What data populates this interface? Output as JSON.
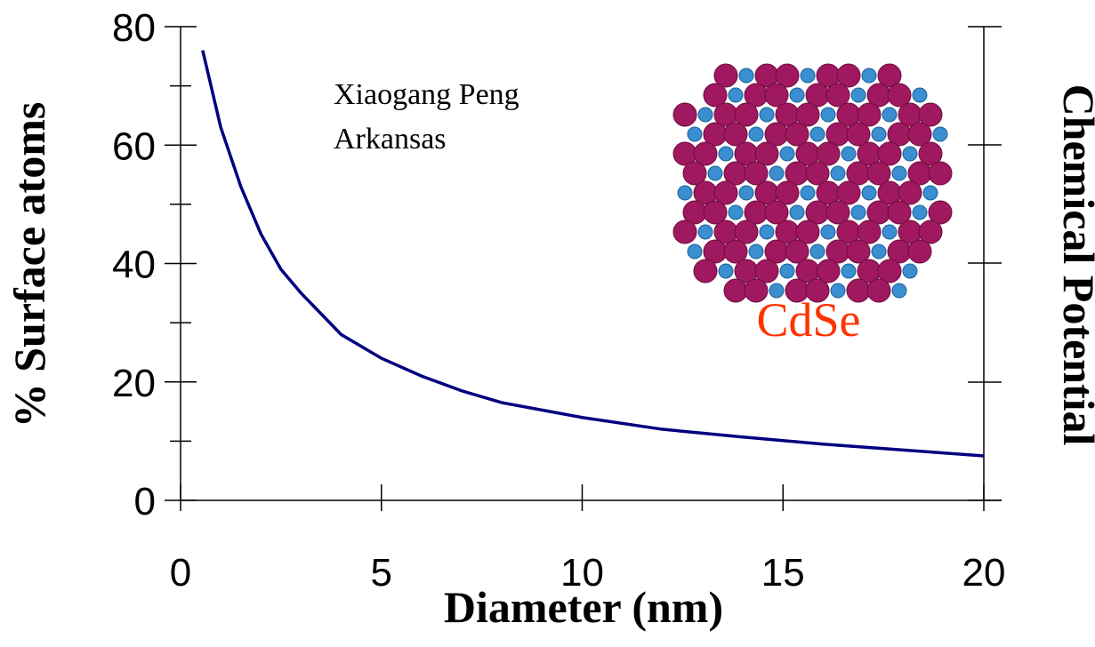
{
  "chart_data": {
    "type": "line",
    "x_label": "Diameter (nm)",
    "y_label": "% Surface atoms",
    "y2_label": "Chemical Potential",
    "annotations": [
      "Xiaogang Peng",
      "Arkansas",
      "CdSe"
    ],
    "xlim": [
      0,
      20
    ],
    "xticks": [
      0,
      5,
      10,
      15,
      20
    ],
    "ylim": [
      0,
      80
    ],
    "yticks": [
      0,
      20,
      40,
      60,
      80
    ],
    "series": [
      {
        "name": "% Surface atoms",
        "color": "#000080",
        "x": [
          0.55,
          1,
          1.5,
          2,
          2.5,
          3,
          4,
          5,
          6,
          7,
          8,
          10,
          12,
          14,
          16,
          18,
          20
        ],
        "values": [
          76,
          63,
          53,
          45,
          39,
          35,
          28,
          24,
          21,
          18.5,
          16.5,
          14,
          12,
          10.7,
          9.5,
          8.5,
          7.5
        ]
      }
    ]
  }
}
